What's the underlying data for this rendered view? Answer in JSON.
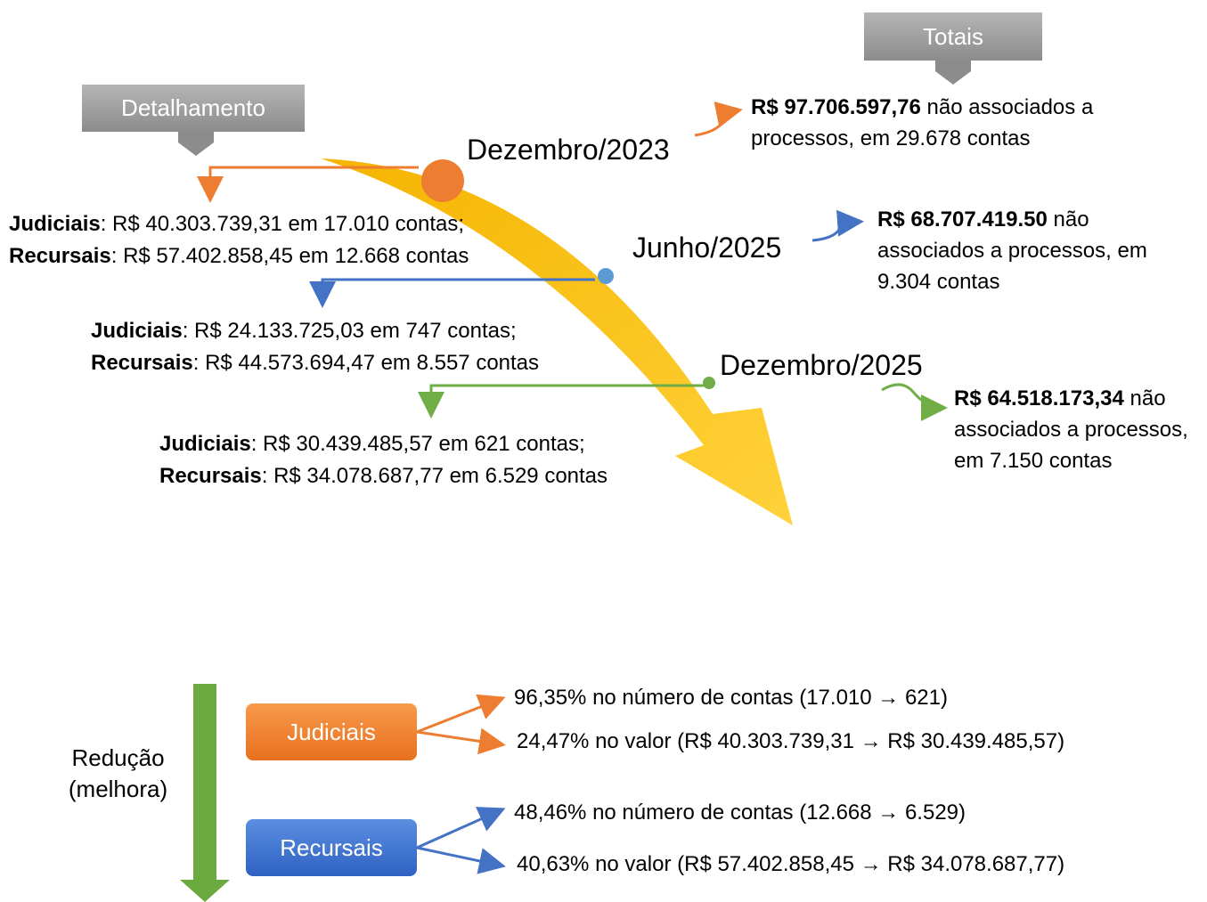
{
  "header_boxes": {
    "detalhamento": "Detalhamento",
    "totais": "Totais"
  },
  "milestones": [
    {
      "label": "Dezembro/2023",
      "total_amount": "R$ 97.706.597,76",
      "total_text": "não associados a processos, em 29.678 contas",
      "details": [
        {
          "label": "Judiciais",
          "text": ": R$ 40.303.739,31 em 17.010 contas;"
        },
        {
          "label": "Recursais",
          "text": ": R$ 57.402.858,45 em 12.668 contas"
        }
      ]
    },
    {
      "label": "Junho/2025",
      "total_amount": "R$ 68.707.419.50",
      "total_text": "não associados a processos, em 9.304 contas",
      "details": [
        {
          "label": "Judiciais",
          "text": ": R$ 24.133.725,03 em 747 contas;"
        },
        {
          "label": "Recursais",
          "text": ": R$ 44.573.694,47 em 8.557 contas"
        }
      ]
    },
    {
      "label": "Dezembro/2025",
      "total_amount": "R$ 64.518.173,34",
      "total_text": "não associados a processos, em 7.150 contas",
      "details": [
        {
          "label": "Judiciais",
          "text": ": R$ 30.439.485,57 em 621 contas;"
        },
        {
          "label": "Recursais",
          "text": ": R$ 34.078.687,77 em 6.529 contas"
        }
      ]
    }
  ],
  "reduction": {
    "title": "Redução (melhora)",
    "groups": [
      {
        "label": "Judiciais",
        "items": [
          "96,35% no número de contas (17.010 → 621)",
          "24,47% no valor (R$ 40.303.739,31 → R$ 30.439.485,57)"
        ]
      },
      {
        "label": "Recursais",
        "items": [
          "48,46% no número de contas (12.668 → 6.529)",
          "40,63% no valor (R$ 57.402.858,45 → R$ 34.078.687,77)"
        ]
      }
    ]
  }
}
